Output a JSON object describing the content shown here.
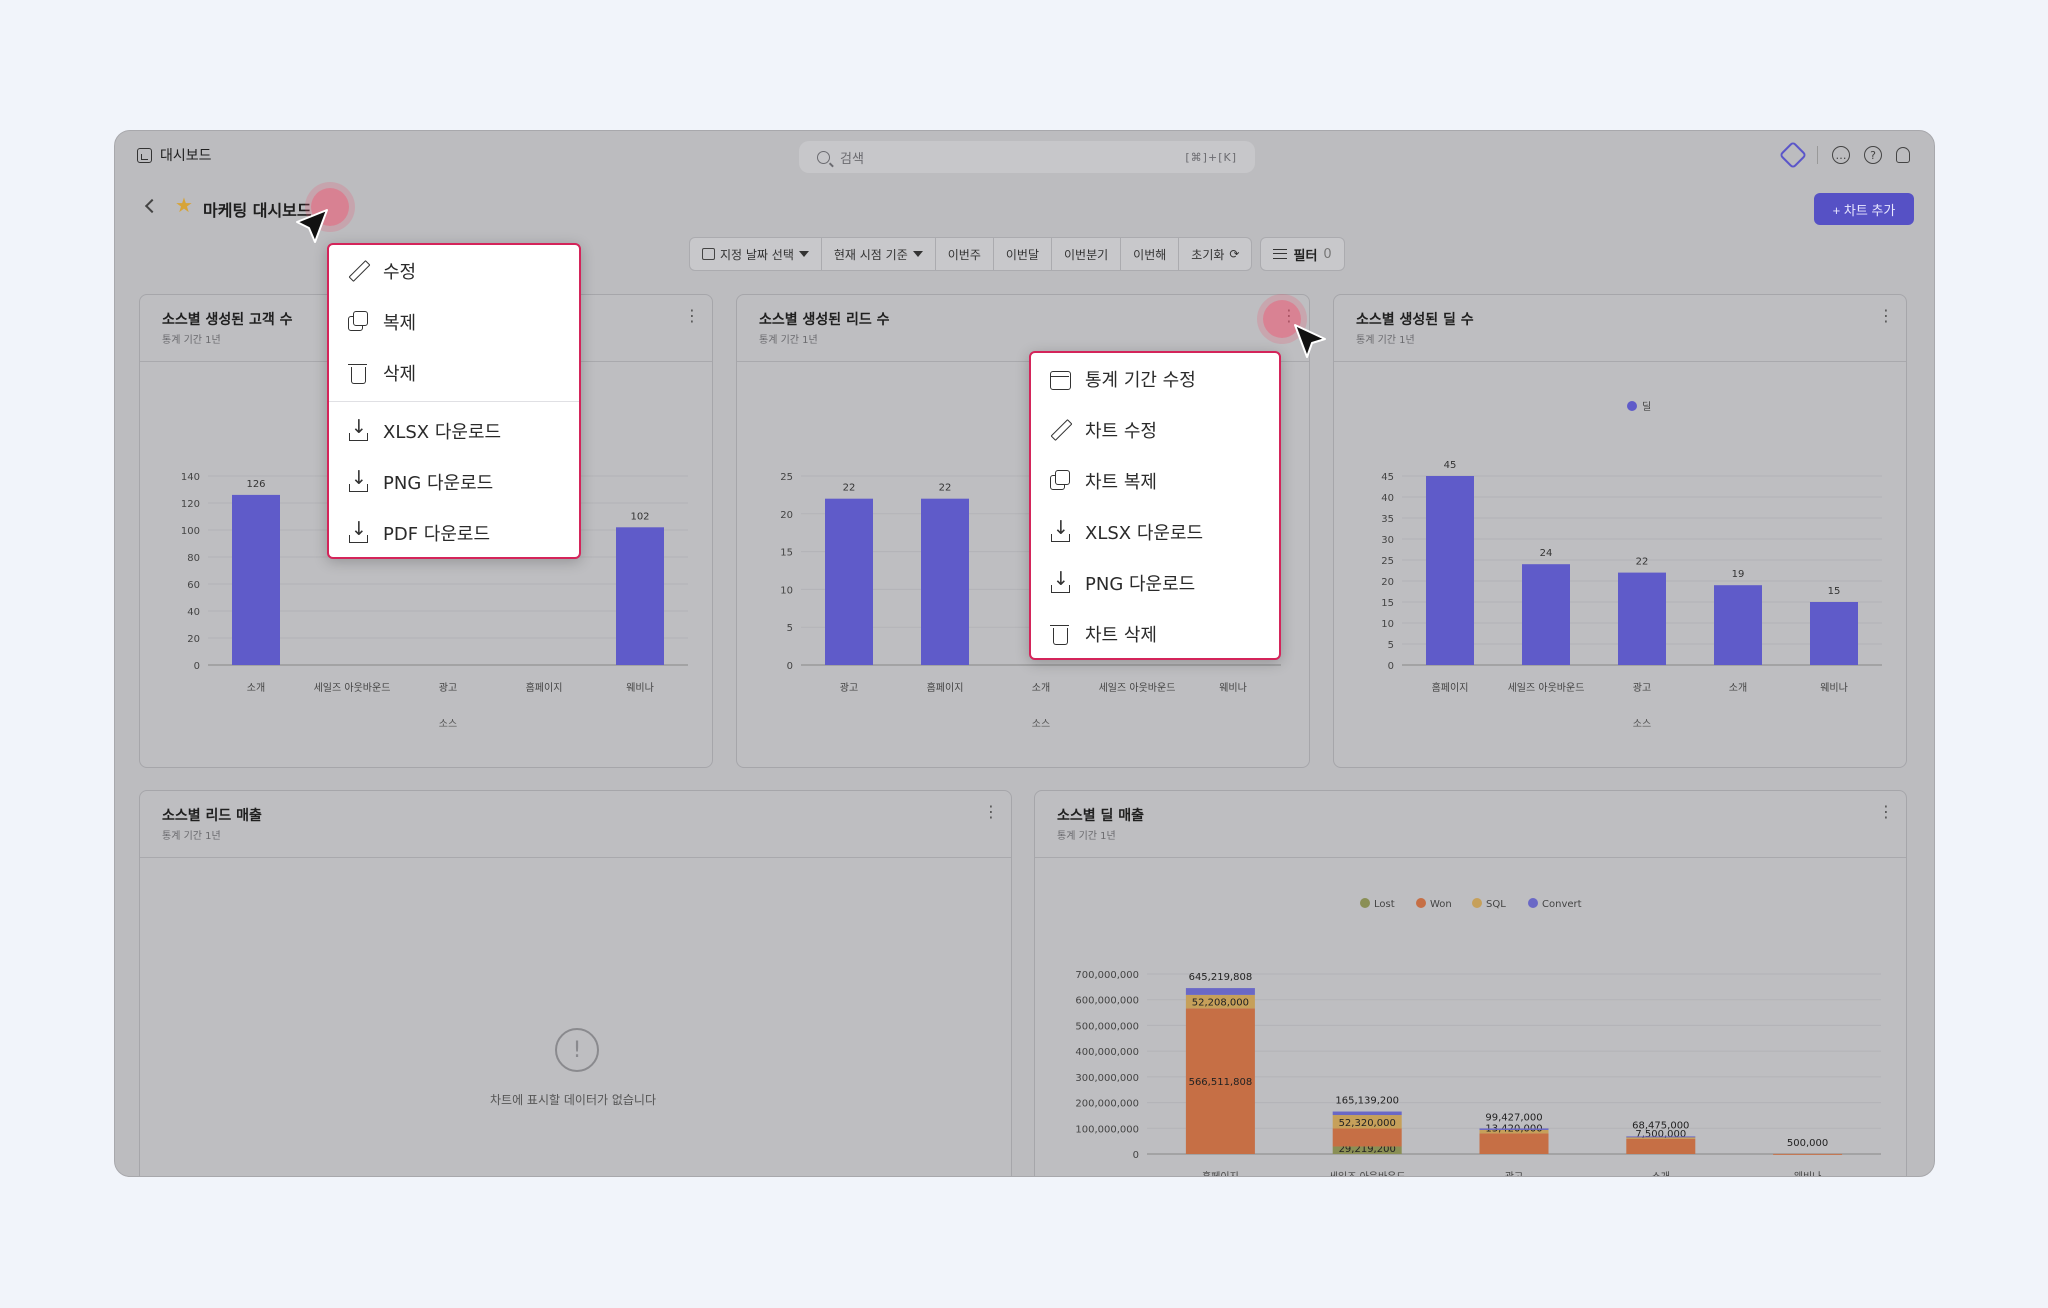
{
  "app": {
    "title": "대시보드",
    "search_placeholder": "검색",
    "search_shortcut": "[⌘]+[K]"
  },
  "dashboard": {
    "title": "마케팅 대시보드",
    "add_chart_label": "+ 차트 추가"
  },
  "toolbar": {
    "date_select": "지정 날짜 선택",
    "time_basis": "현재 시점 기준",
    "quick_ranges": [
      "이번주",
      "이번달",
      "이번분기",
      "이번해"
    ],
    "reset": "초기화",
    "filter_label": "필터",
    "filter_count": "0"
  },
  "charts": {
    "customers": {
      "title": "소스별 생성된 고객 수",
      "subtitle": "통계 기간 1년"
    },
    "leads": {
      "title": "소스별 생성된 리드 수",
      "subtitle": "통계 기간 1년"
    },
    "deals": {
      "title": "소스별 생성된 딜 수",
      "subtitle": "통계 기간 1년"
    },
    "lead_revenue": {
      "title": "소스별 리드 매출",
      "subtitle": "통계 기간 1년",
      "empty_message": "차트에 표시할 데이터가 없습니다"
    },
    "deal_revenue": {
      "title": "소스별 딜 매출",
      "subtitle": "통계 기간 1년"
    }
  },
  "chart_data": [
    {
      "id": "customers",
      "type": "bar",
      "categories": [
        "소개",
        "세일즈 아웃바운드",
        "광고",
        "홈페이지",
        "웨비나"
      ],
      "values": [
        126,
        null,
        null,
        null,
        102
      ],
      "data_labels": [
        "126",
        "",
        "",
        "",
        "102"
      ],
      "ylim": [
        0,
        140
      ],
      "yticks": [
        0,
        20,
        40,
        60,
        80,
        100,
        120,
        140
      ],
      "xlabel": "소스",
      "color": "#5f5bc9"
    },
    {
      "id": "leads",
      "type": "bar",
      "categories": [
        "광고",
        "홈페이지",
        "소개",
        "세일즈 아웃바운드",
        "웨비나"
      ],
      "values": [
        22,
        22,
        null,
        null,
        null
      ],
      "data_labels": [
        "22",
        "22",
        "",
        "",
        ""
      ],
      "ylim": [
        0,
        25
      ],
      "yticks": [
        0,
        5,
        10,
        15,
        20,
        25
      ],
      "xlabel": "소스",
      "color": "#5f5bc9"
    },
    {
      "id": "deals",
      "type": "bar",
      "categories": [
        "홈페이지",
        "세일즈 아웃바운드",
        "광고",
        "소개",
        "웨비나"
      ],
      "values": [
        45,
        24,
        22,
        19,
        15
      ],
      "data_labels": [
        "45",
        "24",
        "22",
        "19",
        "15"
      ],
      "ylim": [
        0,
        45
      ],
      "yticks": [
        0,
        5,
        10,
        15,
        20,
        25,
        30,
        35,
        40,
        45
      ],
      "xlabel": "소스",
      "legend": [
        "딜"
      ],
      "legend_position": "top",
      "color": "#5f5bc9"
    },
    {
      "id": "deal_revenue",
      "type": "bar",
      "stacked": true,
      "categories": [
        "홈페이지",
        "세일즈 아웃바운드",
        "광고",
        "소개",
        "웨비나"
      ],
      "ylim": [
        0,
        700000000
      ],
      "yticks": [
        "0",
        "100,000,000",
        "200,000,000",
        "300,000,000",
        "400,000,000",
        "500,000,000",
        "600,000,000",
        "700,000,000"
      ],
      "legend": [
        "Lost",
        "Won",
        "SQL",
        "Convert"
      ],
      "legend_position": "top",
      "colors": {
        "Lost": "#8a8f55",
        "Won": "#c66f45",
        "SQL": "#c6a05a",
        "Convert": "#6a68c6"
      },
      "totals": [
        645219808,
        165139200,
        99427000,
        68475000,
        500000
      ],
      "total_labels": [
        "645,219,808",
        "165,139,200",
        "99,427,000",
        "68,475,000",
        "500,000"
      ],
      "won": [
        566511808,
        70000000,
        80000000,
        59000000,
        500000
      ],
      "won_labels": [
        "566,511,808",
        "",
        "",
        "",
        ""
      ],
      "sql": [
        52208000,
        52320000,
        13420000,
        7500000,
        0
      ],
      "sql_labels": [
        "52,208,000",
        "52,320,000",
        "13,420,000",
        "7,500,000",
        ""
      ],
      "lost": [
        0,
        29219200,
        0,
        0,
        0
      ],
      "lost_labels": [
        "",
        "29,219,200",
        "",
        "",
        ""
      ],
      "convert": [
        26500000,
        13600000,
        6007000,
        1975000,
        0
      ]
    }
  ],
  "menus": {
    "dashboard_menu": [
      {
        "icon": "pencil-icon",
        "label": "수정"
      },
      {
        "icon": "copy-icon",
        "label": "복제"
      },
      {
        "icon": "trash-icon",
        "label": "삭제"
      },
      {
        "icon": "download-icon",
        "label": "XLSX 다운로드"
      },
      {
        "icon": "download-icon",
        "label": "PNG 다운로드"
      },
      {
        "icon": "download-icon",
        "label": "PDF 다운로드"
      }
    ],
    "chart_menu": [
      {
        "icon": "calendar-icon",
        "label": "통계 기간 수정"
      },
      {
        "icon": "pencil-icon",
        "label": "차트 수정"
      },
      {
        "icon": "copy-icon",
        "label": "차트 복제"
      },
      {
        "icon": "download-icon",
        "label": "XLSX 다운로드"
      },
      {
        "icon": "download-icon",
        "label": "PNG 다운로드"
      },
      {
        "icon": "trash-icon",
        "label": "차트 삭제"
      }
    ]
  }
}
